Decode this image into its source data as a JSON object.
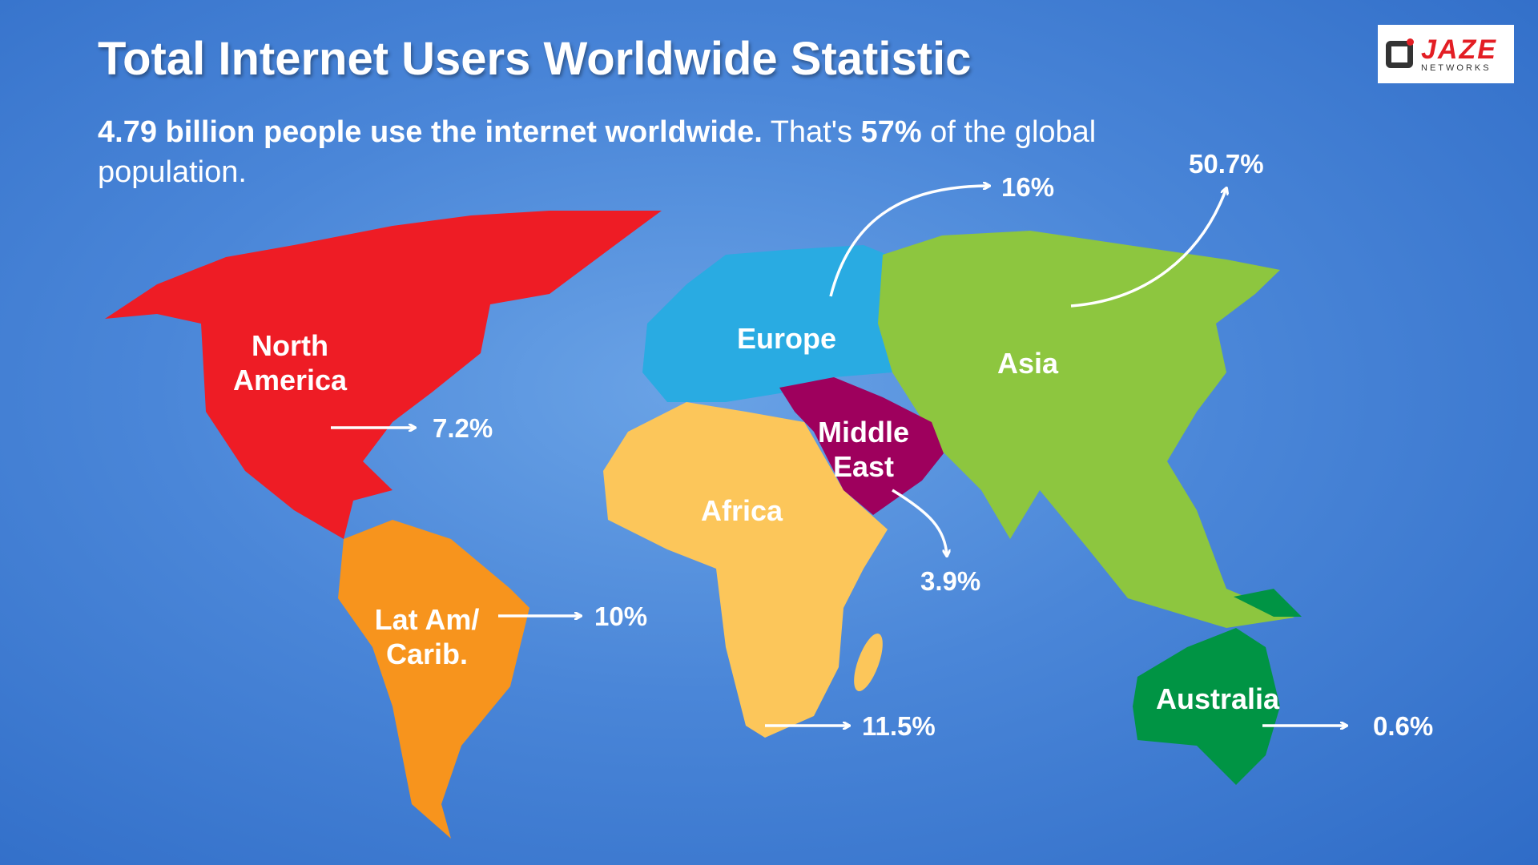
{
  "header": {
    "title": "Total Internet Users Worldwide Statistic",
    "subtitle": [
      "4.79 billion people use the internet worldwide.",
      "That's",
      "57%",
      "of the global population."
    ]
  },
  "logo": {
    "brand": "JAZE",
    "tagline": "NETWORKS"
  },
  "regions": [
    {
      "name": [
        "North",
        "America"
      ],
      "share": "7.2%"
    },
    {
      "name": [
        "Lat Am/",
        "Carib."
      ],
      "share": "10%"
    },
    {
      "name": [
        "Europe"
      ],
      "share": "16%"
    },
    {
      "name": [
        "Middle",
        "East"
      ],
      "share": "3.9%"
    },
    {
      "name": [
        "Africa"
      ],
      "share": "11.5%"
    },
    {
      "name": [
        "Asia"
      ],
      "share": "50.7%"
    },
    {
      "name": [
        "Australia"
      ],
      "share": "0.6%"
    }
  ]
}
